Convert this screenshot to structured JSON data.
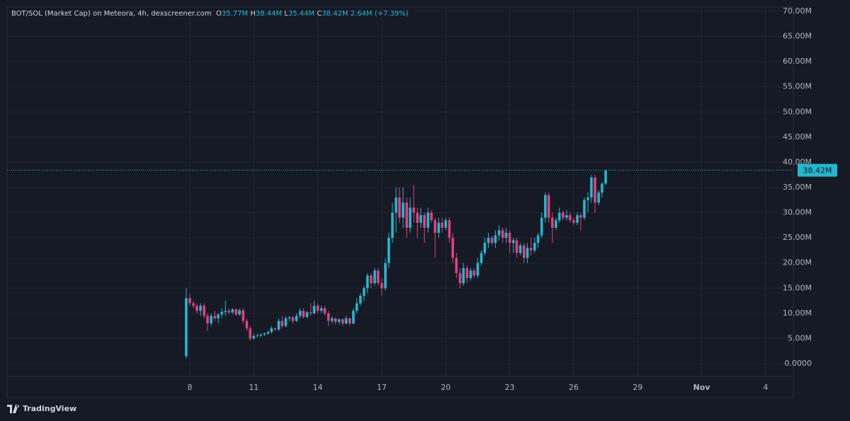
{
  "header": {
    "symbol": "BOT/SOL (Market Cap) on Meteora, 4h, dexscreener.com",
    "ohlc": [
      {
        "key": "O",
        "value": "35.77M"
      },
      {
        "key": "H",
        "value": "38.44M"
      },
      {
        "key": "L",
        "value": "35.44M"
      },
      {
        "key": "C",
        "value": "38.42M"
      }
    ],
    "change": "2.64M (+7.39%)"
  },
  "footer": {
    "brand": "TradingView"
  },
  "chart_data": {
    "type": "candlestick",
    "up_color": "#22b8cf",
    "down_color": "#e2407f",
    "grid": true,
    "x": [
      7.83,
      8,
      8.17,
      8.33,
      8.5,
      8.67,
      8.83,
      9,
      9.17,
      9.33,
      9.5,
      9.67,
      9.83,
      10,
      10.17,
      10.33,
      10.5,
      10.67,
      10.83,
      11,
      11.17,
      11.33,
      11.5,
      11.67,
      11.83,
      12,
      12.17,
      12.33,
      12.5,
      12.67,
      12.83,
      13,
      13.17,
      13.33,
      13.5,
      13.67,
      13.83,
      14,
      14.17,
      14.33,
      14.5,
      14.67,
      14.83,
      15,
      15.17,
      15.33,
      15.5,
      15.67,
      15.83,
      16,
      16.17,
      16.33,
      16.5,
      16.67,
      16.83,
      17,
      17.17,
      17.33,
      17.5,
      17.67,
      17.83,
      18,
      18.17,
      18.33,
      18.5,
      18.67,
      18.83,
      19,
      19.17,
      19.33,
      19.5,
      19.67,
      19.83,
      20,
      20.17,
      20.33,
      20.5,
      20.67,
      20.83,
      21,
      21.17,
      21.33,
      21.5,
      21.67,
      21.83,
      22,
      22.17,
      22.33,
      22.5,
      22.67,
      22.83,
      23,
      23.17,
      23.33,
      23.5,
      23.67,
      23.83,
      24,
      24.17,
      24.33,
      24.5,
      24.67,
      24.83,
      25,
      25.17,
      25.33,
      25.5,
      25.67,
      25.83,
      26,
      26.17,
      26.33,
      26.5,
      26.67,
      26.83,
      27,
      27.17,
      27.33,
      27.5
    ],
    "open": [
      1.5,
      13,
      12,
      11.5,
      10.5,
      11.5,
      9.5,
      8,
      9.5,
      9,
      9.8,
      10.3,
      10.5,
      10.2,
      10.8,
      9.8,
      10.6,
      8.5,
      7,
      5,
      5.5,
      5.6,
      5.8,
      6,
      6.3,
      7,
      6.8,
      8.5,
      7.5,
      9,
      9.2,
      8.5,
      9.5,
      10.5,
      9.3,
      10.2,
      10,
      11.5,
      10.5,
      11,
      10,
      8.5,
      9,
      8.3,
      8.8,
      8,
      9,
      8,
      10.5,
      12,
      13.5,
      15,
      17.5,
      16,
      18.5,
      16,
      15,
      20,
      25,
      30,
      33,
      29,
      32,
      27,
      31,
      30,
      28,
      29.5,
      27,
      30,
      28.5,
      26,
      28,
      27,
      28.5,
      25,
      21,
      18,
      16,
      19,
      17,
      18.5,
      17.5,
      20,
      22,
      24,
      25,
      24,
      25.5,
      26.5,
      25,
      26,
      24,
      24.5,
      22,
      23.5,
      21,
      23,
      22.5,
      24,
      25.5,
      29,
      33.5,
      29,
      27,
      28.5,
      30,
      29,
      29.5,
      28.5,
      28,
      29.5,
      29,
      32.5,
      33,
      37,
      32,
      34,
      35.77
    ],
    "high": [
      15,
      14,
      12.5,
      12,
      12,
      12,
      10,
      10,
      10.5,
      10,
      11,
      12.5,
      11,
      11,
      11,
      11,
      11,
      9,
      7.5,
      6,
      6,
      6,
      6.2,
      6.5,
      7.5,
      7.2,
      9,
      9.5,
      9.5,
      9.5,
      9.5,
      10,
      11,
      11,
      10.5,
      12,
      12.5,
      12,
      11.5,
      11.5,
      10.5,
      9.5,
      9.2,
      9,
      9,
      9.5,
      9.2,
      11,
      13,
      14,
      15.5,
      18,
      18,
      19,
      19,
      17,
      21,
      26,
      32,
      35,
      35,
      35,
      33,
      33,
      35.5,
      31,
      31,
      30,
      31,
      30.5,
      29,
      29,
      29,
      29,
      29,
      26,
      22,
      19,
      20,
      19.5,
      19,
      19,
      21,
      22.5,
      25,
      26,
      25.5,
      26.5,
      27.5,
      27,
      27,
      26.5,
      25,
      25,
      24,
      24,
      24,
      25,
      25,
      26,
      30,
      34,
      34,
      30,
      29,
      31,
      30.5,
      30.5,
      30,
      29,
      30,
      30,
      33,
      34,
      37.5,
      37.5,
      34.5,
      36,
      38.44
    ],
    "low": [
      1,
      11.5,
      11,
      10,
      9.5,
      9,
      6.5,
      7.5,
      8.5,
      8,
      9,
      9.5,
      9.8,
      9.8,
      9.5,
      9.5,
      8,
      6.5,
      4.5,
      4.8,
      5.2,
      5.3,
      5.5,
      5.8,
      6,
      6.5,
      6.5,
      7,
      7.2,
      8.5,
      8,
      8.3,
      9,
      9,
      9,
      9.5,
      9.8,
      10,
      10,
      9.5,
      7.5,
      8,
      7.8,
      7.8,
      7.5,
      7.8,
      7.5,
      7.8,
      10,
      11.5,
      12.5,
      14,
      15,
      15.5,
      15.5,
      13.5,
      14.5,
      19,
      24,
      26,
      28,
      27,
      25,
      26,
      28,
      25,
      27,
      24,
      26,
      28,
      21,
      25,
      26,
      26.5,
      24,
      20,
      17,
      15,
      15.5,
      16,
      16.5,
      17,
      17,
      19.5,
      21.5,
      23,
      23.5,
      23,
      24.5,
      24,
      24,
      22,
      22,
      21,
      21.5,
      20,
      20,
      21.5,
      22,
      23,
      25,
      28,
      28,
      24,
      26.5,
      28,
      28.5,
      28.5,
      28,
      27.5,
      27.5,
      26.5,
      28.5,
      30,
      32,
      30,
      31.5,
      33,
      35.44
    ],
    "close": [
      13,
      12,
      11.5,
      10.5,
      11.5,
      9.5,
      8,
      9.5,
      9,
      9.8,
      10.3,
      10.5,
      10.2,
      10.8,
      9.8,
      10.6,
      8.5,
      7,
      5,
      5.5,
      5.6,
      5.8,
      6,
      6.3,
      7,
      6.8,
      8.5,
      7.5,
      9,
      9.2,
      8.5,
      9.5,
      10.5,
      9.3,
      10.2,
      10,
      11.5,
      10.5,
      11,
      10,
      8.5,
      9,
      8.3,
      8.8,
      8,
      9,
      8,
      10.5,
      12,
      13.5,
      15,
      17.5,
      16,
      18.5,
      16,
      15,
      20,
      25,
      30,
      33,
      29,
      32,
      27,
      31,
      30,
      28,
      29.5,
      27,
      30,
      28.5,
      26,
      28,
      27,
      28.5,
      25,
      21,
      18,
      16,
      19,
      17,
      18.5,
      17.5,
      20,
      22,
      24,
      25,
      24,
      25.5,
      26.5,
      25,
      26,
      24,
      24.5,
      22,
      23.5,
      21,
      23,
      22.5,
      24,
      25.5,
      29,
      33.5,
      29,
      27,
      28.5,
      30,
      29,
      29.5,
      28.5,
      28,
      29.5,
      29,
      32.5,
      33,
      37,
      32,
      34,
      35.77,
      38.42
    ],
    "xlim": [
      -0.57,
      36.3
    ],
    "xticks": [
      8,
      11,
      14,
      17,
      20,
      23,
      26,
      29,
      {
        "value": 32,
        "label": "Nov"
      },
      {
        "value": 35,
        "label": "4"
      }
    ],
    "ylim": [
      -2.53,
      70.84
    ],
    "yticks": [
      {
        "value": 0,
        "label": "0.0000"
      },
      {
        "value": 5,
        "label": "5.00M"
      },
      {
        "value": 10,
        "label": "10.00M"
      },
      {
        "value": 15,
        "label": "15.00M"
      },
      {
        "value": 20,
        "label": "20.00M"
      },
      {
        "value": 25,
        "label": "25.00M"
      },
      {
        "value": 30,
        "label": "30.00M"
      },
      {
        "value": 35,
        "label": "35.00M"
      },
      {
        "value": 40,
        "label": "40.00M"
      },
      {
        "value": 45,
        "label": "45.00M"
      },
      {
        "value": 50,
        "label": "50.00M"
      },
      {
        "value": 55,
        "label": "55.00M"
      },
      {
        "value": 60,
        "label": "60.00M"
      },
      {
        "value": 65,
        "label": "65.00M"
      },
      {
        "value": 70,
        "label": "70.00M"
      }
    ],
    "last_price": {
      "value": 38.42,
      "label": "38.42M"
    }
  }
}
